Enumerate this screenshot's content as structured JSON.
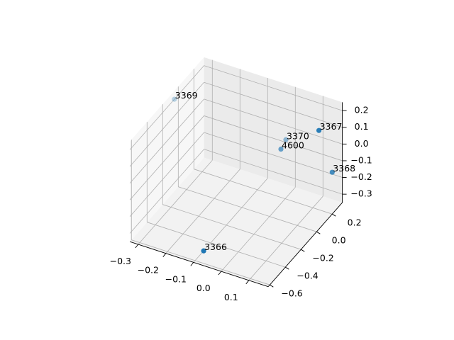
{
  "chart_data": {
    "type": "scatter3d",
    "title": "",
    "xlabel": "",
    "ylabel": "",
    "zlabel": "",
    "xlim": [
      -0.33,
      0.17
    ],
    "ylim": [
      -0.62,
      0.33
    ],
    "zlim": [
      -0.35,
      0.25
    ],
    "xticks": [
      "-0.3",
      "-0.2",
      "-0.1",
      "0.0",
      "0.1"
    ],
    "yticks": [
      "-0.6",
      "-0.4",
      "-0.2",
      "0.0",
      "0.2"
    ],
    "zticks": [
      "-0.3",
      "-0.2",
      "-0.1",
      "0.0",
      "0.1",
      "0.2"
    ],
    "grid": true,
    "color": "#1f77b4",
    "points": [
      {
        "label": "3366",
        "x": -0.1,
        "y": -0.49,
        "z": -0.35
      },
      {
        "label": "3369",
        "x": -0.33,
        "y": -0.05,
        "z": 0.2
      },
      {
        "label": "3367",
        "x": 0.17,
        "y": 0.03,
        "z": 0.24
      },
      {
        "label": "3370",
        "x": -0.02,
        "y": 0.28,
        "z": -0.05
      },
      {
        "label": "4600",
        "x": 0.01,
        "y": 0.11,
        "z": 0.0
      },
      {
        "label": "3368",
        "x": 0.17,
        "y": 0.2,
        "z": -0.1
      }
    ]
  }
}
